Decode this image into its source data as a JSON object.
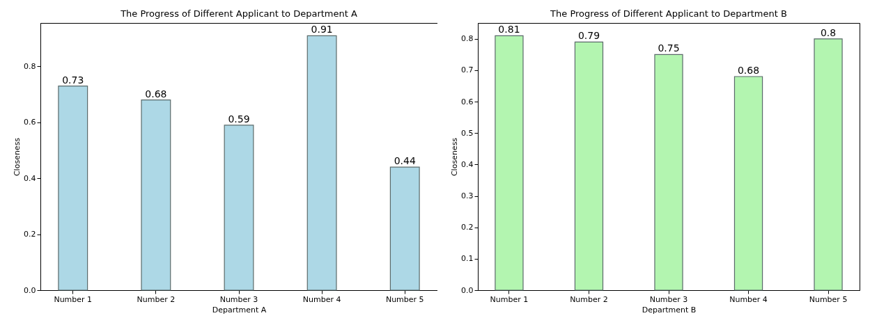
{
  "chart_data": [
    {
      "type": "bar",
      "title": "The Progress of Different Applicant to Department A",
      "xlabel": "Department A",
      "ylabel": "Closeness",
      "categories": [
        "Number 1",
        "Number 2",
        "Number 3",
        "Number 4",
        "Number 5"
      ],
      "values": [
        0.73,
        0.68,
        0.59,
        0.91,
        0.44
      ],
      "color": "#add8e6",
      "ylim": [
        0,
        0.9555
      ],
      "yticks": [
        {
          "value": 0,
          "label": "0.0"
        },
        0.2,
        0.4,
        0.6,
        0.8
      ],
      "data_labels": true
    },
    {
      "type": "bar",
      "title": "The Progress of Different Applicant to Department B",
      "xlabel": "Department B",
      "ylabel": "Closeness",
      "categories": [
        "Number 1",
        "Number 2",
        "Number 3",
        "Number 4",
        "Number 5"
      ],
      "values": [
        0.81,
        0.79,
        0.75,
        0.68,
        0.8
      ],
      "color": "#b3f5b0",
      "ylim": [
        0,
        0.8505
      ],
      "yticks": [
        {
          "value": 0,
          "label": "0.0"
        },
        0.1,
        0.2,
        0.3,
        0.4,
        0.5,
        0.6,
        0.7,
        0.8
      ],
      "data_labels": true
    }
  ]
}
